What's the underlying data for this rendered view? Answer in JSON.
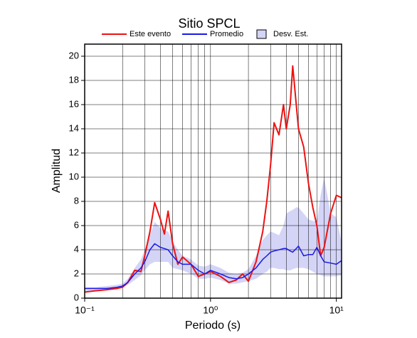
{
  "chart_data": {
    "type": "line",
    "title": "Sitio SPCL",
    "xlabel": "Periodo (s)",
    "ylabel": "Amplitud",
    "xscale": "log",
    "xlim": [
      0.1,
      11
    ],
    "ylim": [
      0,
      21
    ],
    "xticks": [
      {
        "value": 0.1,
        "label": "10⁻¹"
      },
      {
        "value": 1,
        "label": "10⁰"
      },
      {
        "value": 10,
        "label": "10¹"
      }
    ],
    "xminorticks": [
      0.2,
      0.3,
      0.4,
      0.5,
      0.6,
      0.7,
      0.8,
      0.9,
      2,
      3,
      4,
      5,
      6,
      7,
      8,
      9
    ],
    "yticks": [
      0,
      2,
      4,
      6,
      8,
      10,
      12,
      14,
      16,
      18,
      20
    ],
    "grid": true,
    "x": [
      0.1,
      0.12,
      0.15,
      0.18,
      0.2,
      0.22,
      0.25,
      0.28,
      0.3,
      0.33,
      0.36,
      0.4,
      0.43,
      0.46,
      0.5,
      0.55,
      0.6,
      0.7,
      0.8,
      0.9,
      1.0,
      1.2,
      1.4,
      1.6,
      1.8,
      2.0,
      2.3,
      2.6,
      2.8,
      3.0,
      3.2,
      3.5,
      3.8,
      4.0,
      4.3,
      4.5,
      4.8,
      5.0,
      5.5,
      6.0,
      6.5,
      7.0,
      7.5,
      8.0,
      9.0,
      10,
      11
    ],
    "series": [
      {
        "name": "Este evento",
        "color": "#ee1111",
        "values": [
          0.5,
          0.6,
          0.7,
          0.8,
          0.9,
          1.3,
          2.3,
          2.2,
          3.5,
          5.5,
          7.9,
          6.5,
          5.3,
          7.2,
          4.5,
          2.8,
          3.4,
          2.8,
          1.8,
          2.0,
          2.2,
          1.8,
          1.3,
          1.5,
          2.0,
          1.4,
          3.0,
          5.5,
          8.0,
          11.0,
          14.5,
          13.5,
          16.0,
          14.0,
          16.0,
          19.2,
          16.0,
          14.0,
          12.5,
          9.5,
          7.5,
          6.0,
          3.5,
          4.2,
          7.0,
          8.5,
          8.3
        ]
      },
      {
        "name": "Promedio",
        "color": "#1a1ae6",
        "values": [
          0.8,
          0.8,
          0.8,
          0.9,
          1.0,
          1.3,
          2.0,
          2.5,
          3.0,
          4.0,
          4.5,
          4.2,
          4.1,
          4.0,
          3.5,
          3.0,
          2.8,
          2.8,
          2.3,
          2.0,
          2.3,
          2.0,
          1.7,
          1.6,
          1.7,
          2.0,
          2.5,
          3.2,
          3.5,
          3.8,
          3.9,
          4.0,
          4.1,
          4.1,
          3.9,
          3.8,
          4.1,
          4.3,
          3.5,
          3.6,
          3.6,
          4.2,
          3.5,
          3.0,
          2.9,
          2.8,
          3.1
        ]
      }
    ],
    "band": {
      "name": "Desv. Est.",
      "color": "#d4d4f7",
      "lower": [
        0.6,
        0.6,
        0.7,
        0.8,
        0.9,
        1.1,
        1.5,
        1.9,
        2.3,
        2.8,
        3.0,
        3.0,
        3.0,
        3.0,
        2.5,
        2.4,
        2.3,
        2.0,
        1.6,
        1.6,
        1.7,
        1.5,
        1.2,
        1.2,
        1.3,
        1.4,
        1.6,
        2.0,
        2.2,
        2.5,
        2.5,
        2.4,
        2.4,
        2.3,
        2.3,
        2.4,
        2.5,
        2.5,
        2.5,
        2.4,
        2.2,
        2.0,
        1.9,
        1.8,
        1.8,
        1.8,
        1.9
      ],
      "upper": [
        0.9,
        0.9,
        1.0,
        1.1,
        1.2,
        1.6,
        2.5,
        3.2,
        4.0,
        5.2,
        6.3,
        5.8,
        5.6,
        5.5,
        4.7,
        4.0,
        3.5,
        3.2,
        2.7,
        2.6,
        2.8,
        2.5,
        2.1,
        2.0,
        2.1,
        2.4,
        3.5,
        4.8,
        5.2,
        5.5,
        5.4,
        5.2,
        6.0,
        7.0,
        7.2,
        7.3,
        7.5,
        7.5,
        7.0,
        6.5,
        6.4,
        6.3,
        8.5,
        10.0,
        7.0,
        6.7,
        4.6
      ]
    }
  }
}
